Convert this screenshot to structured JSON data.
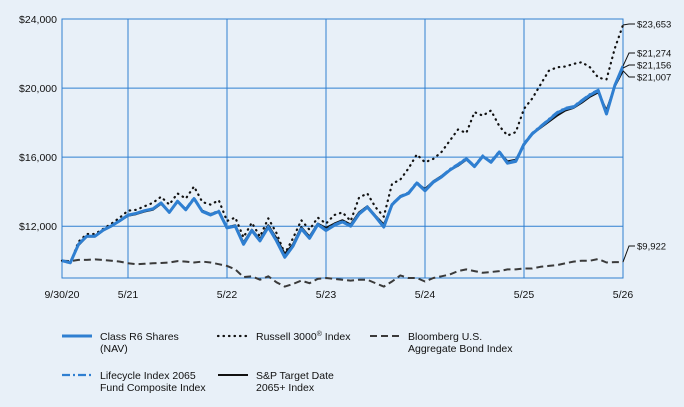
{
  "chart_data": {
    "type": "line",
    "y_axis": {
      "min": 9000,
      "max": 24000,
      "ticks": [
        12000,
        16000,
        20000,
        24000
      ],
      "tick_labels": [
        "$12,000",
        "$16,000",
        "$20,000",
        "$24,000"
      ]
    },
    "x_axis": {
      "min": 0,
      "max": 68,
      "ticks": [
        0,
        8,
        20,
        32,
        44,
        56,
        68
      ],
      "tick_labels": [
        "9/30/20",
        "5/21",
        "5/22",
        "5/23",
        "5/24",
        "5/25",
        "5/26"
      ]
    },
    "grid": true,
    "series": [
      {
        "name": "Bloomberg U.S. Aggregate Bond Index",
        "color": "#3a3a3a",
        "style": "dashed",
        "end_label": "$9,922",
        "x": [
          0,
          1,
          2,
          3,
          4,
          5,
          6,
          7,
          8,
          9,
          10,
          11,
          12,
          13,
          14,
          15,
          16,
          17,
          18,
          19,
          20,
          21,
          22,
          23,
          24,
          25,
          26,
          27,
          28,
          29,
          30,
          31,
          32,
          33,
          34,
          35,
          36,
          37,
          38,
          39,
          40,
          41,
          42,
          43,
          44,
          45,
          46,
          47,
          48,
          49,
          50,
          51,
          52,
          53,
          54,
          55,
          56,
          57,
          58,
          59,
          60,
          61,
          62,
          63,
          64,
          65,
          66,
          67,
          68
        ],
        "y": [
          10000,
          9980,
          10050,
          10050,
          10080,
          10040,
          10000,
          9950,
          9850,
          9800,
          9820,
          9850,
          9870,
          9900,
          9980,
          9950,
          9900,
          9950,
          9900,
          9800,
          9700,
          9500,
          9050,
          9100,
          8900,
          9100,
          8750,
          8500,
          8650,
          8850,
          8700,
          8950,
          9000,
          8950,
          8900,
          8850,
          8900,
          8900,
          8700,
          8500,
          8800,
          9150,
          9000,
          9000,
          8800,
          9000,
          9100,
          9200,
          9400,
          9500,
          9400,
          9300,
          9350,
          9400,
          9500,
          9500,
          9550,
          9550,
          9650,
          9700,
          9750,
          9850,
          9950,
          10000,
          10000,
          10100,
          9900,
          9920,
          9922
        ]
      },
      {
        "name": "Russell 3000® Index",
        "color": "#111111",
        "style": "dotted",
        "end_label": "$23,653",
        "x": [
          0,
          1,
          2,
          3,
          4,
          5,
          6,
          7,
          8,
          9,
          10,
          11,
          12,
          13,
          14,
          15,
          16,
          17,
          18,
          19,
          20,
          21,
          22,
          23,
          24,
          25,
          26,
          27,
          28,
          29,
          30,
          31,
          32,
          33,
          34,
          35,
          36,
          37,
          38,
          39,
          40,
          41,
          42,
          43,
          44,
          45,
          46,
          47,
          48,
          49,
          50,
          51,
          52,
          53,
          54,
          55,
          56,
          57,
          58,
          59,
          60,
          61,
          62,
          63,
          64,
          65,
          66,
          67,
          68
        ],
        "y": [
          10000,
          9850,
          11100,
          11550,
          11550,
          11850,
          12150,
          12500,
          12900,
          12950,
          13150,
          13350,
          13700,
          13250,
          13900,
          13600,
          14300,
          13400,
          13250,
          13500,
          12300,
          12500,
          11350,
          12200,
          11400,
          12450,
          11600,
          10400,
          11300,
          12350,
          11800,
          12500,
          12150,
          12650,
          12800,
          12300,
          13650,
          13900,
          13100,
          12550,
          14450,
          14700,
          15350,
          16150,
          15700,
          15900,
          16300,
          16950,
          17600,
          17400,
          18600,
          18400,
          18700,
          17800,
          17250,
          17450,
          18800,
          19400,
          20200,
          21000,
          21200,
          21250,
          21400,
          21500,
          21200,
          20600,
          20500,
          22300,
          23653
        ]
      },
      {
        "name": "S&P Target Date 2065+ Index",
        "color": "#111111",
        "style": "solid",
        "end_label": "$21,007",
        "x": [
          0,
          1,
          2,
          3,
          4,
          5,
          6,
          7,
          8,
          9,
          10,
          11,
          12,
          13,
          14,
          15,
          16,
          17,
          18,
          19,
          20,
          21,
          22,
          23,
          24,
          25,
          26,
          27,
          28,
          29,
          30,
          31,
          32,
          33,
          34,
          35,
          36,
          37,
          38,
          39,
          40,
          41,
          42,
          43,
          44,
          45,
          46,
          47,
          48,
          49,
          50,
          51,
          52,
          53,
          54,
          55,
          56,
          57,
          58,
          59,
          60,
          61,
          62,
          63,
          64,
          65,
          66,
          67,
          68
        ],
        "y": [
          10000,
          9900,
          10900,
          11400,
          11400,
          11750,
          12000,
          12300,
          12600,
          12700,
          12850,
          12950,
          13300,
          12800,
          13400,
          13000,
          13600,
          12900,
          12700,
          12850,
          11950,
          12050,
          11050,
          11800,
          11250,
          12050,
          11300,
          10400,
          10950,
          11950,
          11400,
          12150,
          11900,
          12150,
          12350,
          12100,
          12800,
          13150,
          12600,
          12100,
          13200,
          13750,
          13900,
          14500,
          14150,
          14600,
          14900,
          15250,
          15500,
          15850,
          15500,
          16050,
          15750,
          16300,
          15750,
          15850,
          16700,
          17350,
          17700,
          18050,
          18400,
          18700,
          18850,
          19150,
          19500,
          19750,
          18700,
          20100,
          21007
        ]
      },
      {
        "name": "Lifecycle Index 2065 Fund Composite Index",
        "color": "#2f7fd1",
        "style": "dashdot",
        "end_label": "$21,156",
        "x": [
          0,
          1,
          2,
          3,
          4,
          5,
          6,
          7,
          8,
          9,
          10,
          11,
          12,
          13,
          14,
          15,
          16,
          17,
          18,
          19,
          20,
          21,
          22,
          23,
          24,
          25,
          26,
          27,
          28,
          29,
          30,
          31,
          32,
          33,
          34,
          35,
          36,
          37,
          38,
          39,
          40,
          41,
          42,
          43,
          44,
          45,
          46,
          47,
          48,
          49,
          50,
          51,
          52,
          53,
          54,
          55,
          56,
          57,
          58,
          59,
          60,
          61,
          62,
          63,
          64,
          65,
          66,
          67,
          68
        ],
        "y": [
          10000,
          9900,
          10950,
          11420,
          11420,
          11780,
          12020,
          12320,
          12640,
          12750,
          12900,
          13000,
          13350,
          12800,
          13450,
          13000,
          13650,
          12900,
          12700,
          12900,
          11950,
          12050,
          11000,
          11800,
          11200,
          12000,
          11250,
          10250,
          10900,
          11900,
          11350,
          12150,
          11800,
          12100,
          12300,
          12050,
          12750,
          13150,
          12600,
          12000,
          13300,
          13750,
          13950,
          14550,
          14100,
          14600,
          14900,
          15300,
          15600,
          15950,
          15500,
          16100,
          15750,
          16350,
          15700,
          15800,
          16800,
          17400,
          17800,
          18200,
          18600,
          18850,
          18950,
          19300,
          19650,
          19900,
          18550,
          20150,
          21156
        ]
      },
      {
        "name": "Class R6 Shares (NAV)",
        "color": "#2f7fd1",
        "style": "solid",
        "end_label": "$21,274",
        "x": [
          0,
          1,
          2,
          3,
          4,
          5,
          6,
          7,
          8,
          9,
          10,
          11,
          12,
          13,
          14,
          15,
          16,
          17,
          18,
          19,
          20,
          21,
          22,
          23,
          24,
          25,
          26,
          27,
          28,
          29,
          30,
          31,
          32,
          33,
          34,
          35,
          36,
          37,
          38,
          39,
          40,
          41,
          42,
          43,
          44,
          45,
          46,
          47,
          48,
          49,
          50,
          51,
          52,
          53,
          54,
          55,
          56,
          57,
          58,
          59,
          60,
          61,
          62,
          63,
          64,
          65,
          66,
          67,
          68
        ],
        "y": [
          10000,
          9880,
          10950,
          11420,
          11420,
          11780,
          12020,
          12320,
          12640,
          12750,
          12900,
          13000,
          13350,
          12800,
          13450,
          12950,
          13600,
          12850,
          12650,
          12850,
          11900,
          12000,
          10950,
          11750,
          11150,
          11950,
          11150,
          10200,
          10850,
          11850,
          11300,
          12100,
          11750,
          12050,
          12250,
          12000,
          12700,
          13100,
          12550,
          11950,
          13250,
          13700,
          13900,
          14500,
          14050,
          14550,
          14850,
          15250,
          15550,
          15900,
          15450,
          16050,
          15700,
          16300,
          15650,
          15750,
          16750,
          17350,
          17750,
          18150,
          18550,
          18800,
          18900,
          19250,
          19600,
          19850,
          18500,
          20150,
          21274
        ]
      }
    ]
  },
  "legend": {
    "r6_line1": "Class R6 Shares",
    "r6_line2": "(NAV)",
    "russell_main": "Russell 3000",
    "russell_sup": "®",
    "russell_suffix": " Index",
    "bond_line1": "Bloomberg U.S.",
    "bond_line2": "Aggregate Bond Index",
    "lifecycle_line1": "Lifecycle Index 2065",
    "lifecycle_line2": "Fund Composite Index",
    "sp_line1": "S&P Target Date",
    "sp_line2": "2065+ Index"
  }
}
